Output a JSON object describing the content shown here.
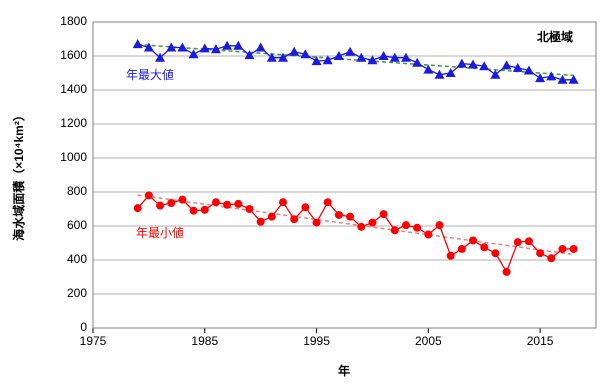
{
  "chart_data": {
    "type": "line",
    "title": "北極域",
    "xlabel": "年",
    "ylabel": "海水域面積（×10⁴km²）",
    "x": [
      1979,
      1980,
      1981,
      1982,
      1983,
      1984,
      1985,
      1986,
      1987,
      1988,
      1989,
      1990,
      1991,
      1992,
      1993,
      1994,
      1995,
      1996,
      1997,
      1998,
      1999,
      2000,
      2001,
      2002,
      2003,
      2004,
      2005,
      2006,
      2007,
      2008,
      2009,
      2010,
      2011,
      2012,
      2013,
      2014,
      2015,
      2016,
      2017,
      2018
    ],
    "series": [
      {
        "name": "年最大値",
        "color": "#1a1ae0",
        "trend_color": "#3a9a3a",
        "marker": "triangle",
        "values": [
          1670,
          1650,
          1590,
          1650,
          1650,
          1610,
          1645,
          1640,
          1660,
          1660,
          1605,
          1650,
          1590,
          1590,
          1625,
          1610,
          1570,
          1575,
          1600,
          1625,
          1590,
          1575,
          1600,
          1590,
          1590,
          1560,
          1520,
          1490,
          1500,
          1555,
          1550,
          1540,
          1490,
          1545,
          1530,
          1515,
          1470,
          1480,
          1460,
          1460
        ]
      },
      {
        "name": "年最小値",
        "color": "#ff0000",
        "trend_color": "#f08080",
        "marker": "circle",
        "values": [
          705,
          780,
          720,
          735,
          755,
          690,
          695,
          740,
          725,
          730,
          700,
          625,
          655,
          740,
          640,
          710,
          620,
          740,
          665,
          655,
          595,
          620,
          670,
          575,
          605,
          590,
          550,
          605,
          425,
          465,
          515,
          475,
          440,
          330,
          505,
          510,
          440,
          410,
          465,
          465
        ]
      }
    ],
    "xlim": [
      1975,
      2020
    ],
    "xticks": [
      1975,
      1985,
      1995,
      2005,
      2015
    ],
    "ylim": [
      0,
      1800
    ],
    "yticks": [
      0,
      200,
      400,
      600,
      800,
      1000,
      1200,
      1400,
      1600,
      1800
    ],
    "grid": true,
    "trendline": true
  }
}
